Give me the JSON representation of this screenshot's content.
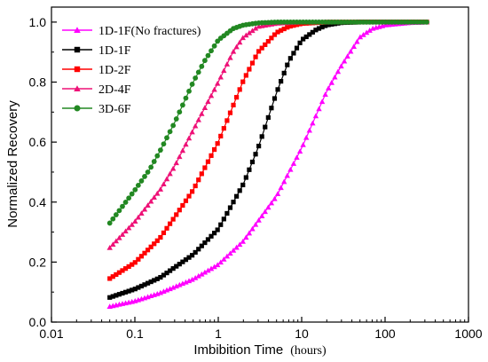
{
  "chart_data": {
    "type": "line",
    "xlabel": "Imbibition Time",
    "xlabel_unit": "(hours)",
    "ylabel": "Normalized Recovery",
    "xscale": "log",
    "xlim": [
      0.01,
      1000
    ],
    "ylim": [
      0.0,
      1.05
    ],
    "x_ticks": [
      0.01,
      0.1,
      1,
      10,
      100,
      1000
    ],
    "x_tick_labels": [
      "0.01",
      "0.1",
      "1",
      "10",
      "100",
      "1000"
    ],
    "y_ticks": [
      0.0,
      0.2,
      0.4,
      0.6,
      0.8,
      1.0
    ],
    "y_tick_labels": [
      "0.0",
      "0.2",
      "0.4",
      "0.6",
      "0.8",
      "1.0"
    ],
    "grid": false,
    "legend_position": "top-left",
    "x_range_data": [
      0.05,
      316
    ],
    "series": [
      {
        "name": "1D-1F(No fractures)",
        "color": "#ff00ff",
        "marker": "triangle",
        "x": [
          0.05,
          0.1,
          0.2,
          0.5,
          1,
          2,
          5,
          10,
          20,
          30,
          50,
          70,
          100,
          200,
          316
        ],
        "y": [
          0.052,
          0.07,
          0.097,
          0.143,
          0.192,
          0.27,
          0.42,
          0.58,
          0.77,
          0.855,
          0.95,
          0.978,
          0.99,
          0.998,
          1.0
        ]
      },
      {
        "name": "1D-1F",
        "color": "#000000",
        "marker": "square",
        "x": [
          0.05,
          0.1,
          0.2,
          0.5,
          1,
          2,
          3,
          5,
          7,
          10,
          15,
          20,
          30,
          50,
          100,
          316
        ],
        "y": [
          0.082,
          0.11,
          0.148,
          0.225,
          0.31,
          0.46,
          0.58,
          0.765,
          0.87,
          0.94,
          0.975,
          0.99,
          0.998,
          1.0,
          1.0,
          1.0
        ]
      },
      {
        "name": "1D-2F",
        "color": "#ff0000",
        "marker": "square",
        "x": [
          0.05,
          0.1,
          0.2,
          0.3,
          0.5,
          1,
          2,
          3,
          5,
          7,
          10,
          20,
          50,
          316
        ],
        "y": [
          0.145,
          0.198,
          0.28,
          0.35,
          0.44,
          0.6,
          0.805,
          0.9,
          0.965,
          0.985,
          0.995,
          1.0,
          1.0,
          1.0
        ]
      },
      {
        "name": "2D-4F",
        "color": "#ee1177",
        "marker": "triangle",
        "x": [
          0.05,
          0.1,
          0.2,
          0.3,
          0.5,
          1,
          1.5,
          2,
          3,
          5,
          10,
          30,
          316
        ],
        "y": [
          0.248,
          0.335,
          0.44,
          0.52,
          0.64,
          0.8,
          0.9,
          0.95,
          0.985,
          0.996,
          1.0,
          1.0,
          1.0
        ]
      },
      {
        "name": "3D-6F",
        "color": "#228822",
        "marker": "circle",
        "x": [
          0.05,
          0.1,
          0.15,
          0.2,
          0.3,
          0.5,
          0.7,
          1,
          1.5,
          2,
          3,
          5,
          10,
          30,
          316
        ],
        "y": [
          0.33,
          0.44,
          0.508,
          0.57,
          0.665,
          0.8,
          0.875,
          0.94,
          0.978,
          0.99,
          0.997,
          1.0,
          1.0,
          1.0,
          1.0
        ]
      }
    ]
  }
}
